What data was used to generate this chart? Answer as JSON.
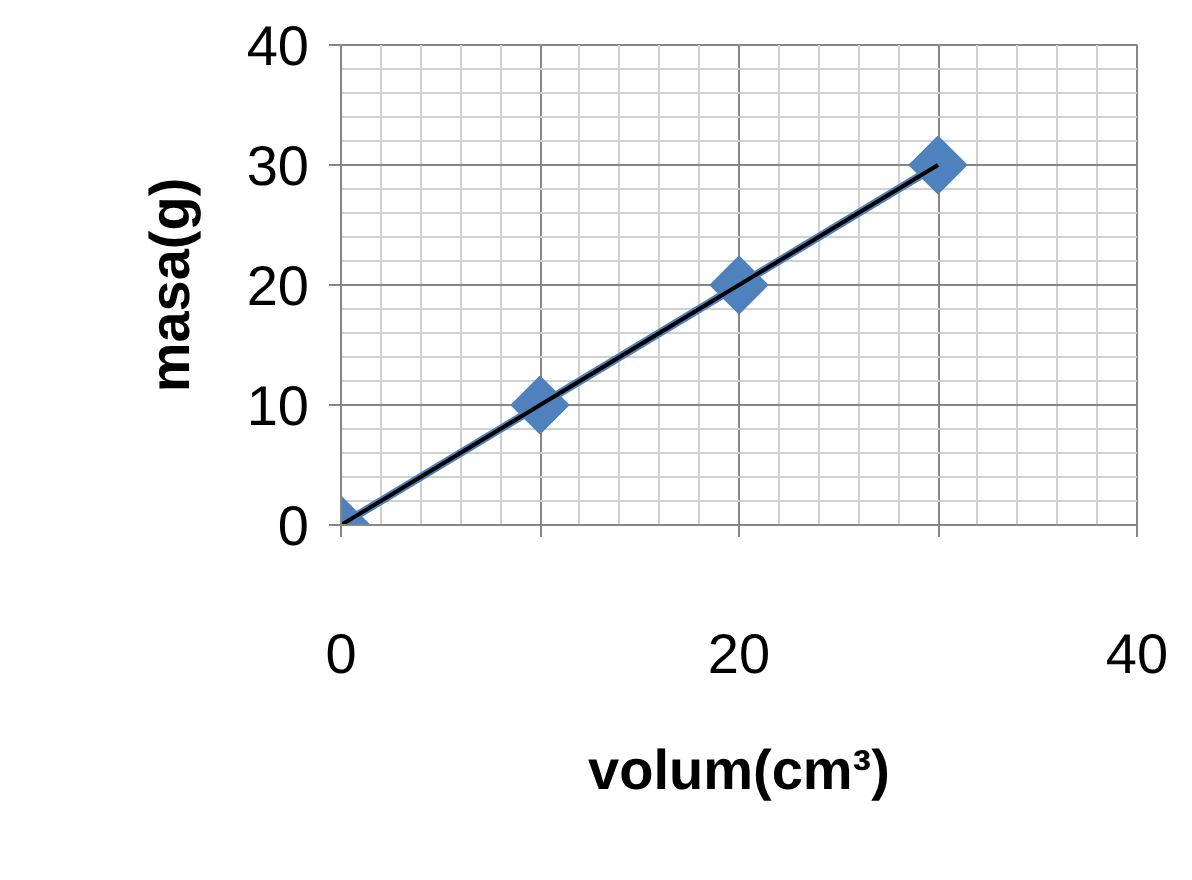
{
  "chart_data": {
    "type": "line",
    "xlabel": "volum(cm³)",
    "ylabel": "masa(g)",
    "x": [
      0,
      10,
      20,
      30
    ],
    "series": [
      {
        "color": "#4f81bd",
        "values": [
          0,
          10,
          20,
          30
        ],
        "marker": "diamond"
      },
      {
        "type": "line",
        "color": "#000000",
        "x": [
          0,
          30
        ],
        "values": [
          0,
          30
        ],
        "marker": "none"
      }
    ],
    "xlim": [
      0,
      40
    ],
    "ylim": [
      0,
      40
    ],
    "xticks": [
      0,
      {
        "value": 10,
        "label": null
      },
      20,
      {
        "value": 30,
        "label": null
      },
      40
    ],
    "yticks": [
      0,
      10,
      20,
      30,
      40
    ],
    "grid": true
  }
}
